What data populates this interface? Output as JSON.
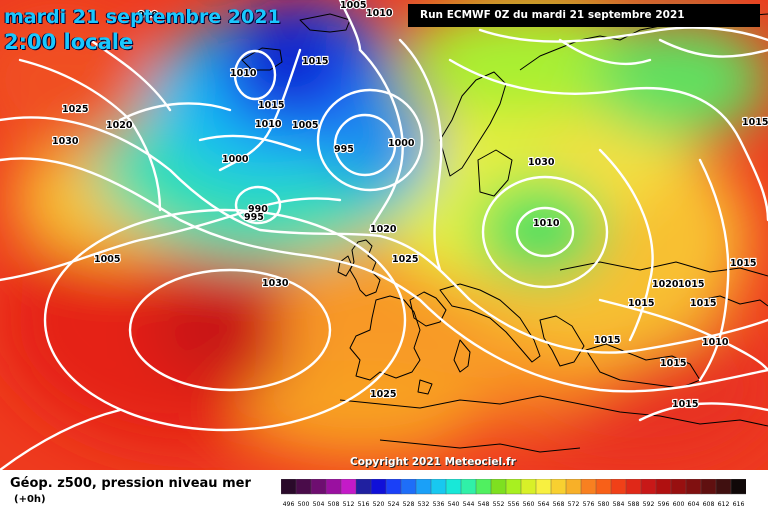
{
  "header": {
    "date_title": "mardi 21 septembre 2021",
    "time_title": "2:00 locale",
    "run_info": "Run ECMWF 0Z du mardi 21 septembre 2021"
  },
  "footer": {
    "copyright": "Copyright 2021 Meteociel.fr",
    "parameter": "Géop. z500, pression niveau mer",
    "lead_time": "(+0h)"
  },
  "colors": {
    "isobar": "#ffffff",
    "coastline": "#000000",
    "background_warm": "#f23a1e"
  },
  "pressure_labels": [
    "1005",
    "1010",
    "990",
    "1010",
    "1015",
    "1015",
    "1010",
    "1005",
    "1000",
    "995",
    "1000",
    "990",
    "995",
    "1025",
    "1020",
    "1030",
    "1020",
    "1025",
    "1030",
    "1010",
    "1005",
    "1030",
    "1025",
    "1020",
    "1015",
    "1015",
    "1015",
    "1015",
    "1010",
    "1015",
    "1015",
    "1015",
    "1015"
  ],
  "color_scale": {
    "values": [
      "496",
      "500",
      "504",
      "508",
      "512",
      "516",
      "520",
      "524",
      "528",
      "532",
      "536",
      "540",
      "544",
      "548",
      "552",
      "556",
      "560",
      "564",
      "568",
      "572",
      "576",
      "580",
      "584",
      "588",
      "592",
      "596",
      "600",
      "604",
      "608",
      "612",
      "616"
    ],
    "colors": [
      "#2a0a2a",
      "#4a0c4a",
      "#6e0e70",
      "#9a10a0",
      "#c41ac8",
      "#2020a0",
      "#1010d8",
      "#1a40f8",
      "#1e6ef8",
      "#1aa0f8",
      "#18c8f0",
      "#18e8d8",
      "#30f0a8",
      "#50f060",
      "#7ee020",
      "#a8f020",
      "#d8f028",
      "#f8f040",
      "#f8d030",
      "#f8b028",
      "#f88020",
      "#f86018",
      "#f04018",
      "#e02818",
      "#c81818",
      "#b01010",
      "#981010",
      "#801010",
      "#601010",
      "#401010",
      "#100808"
    ]
  }
}
